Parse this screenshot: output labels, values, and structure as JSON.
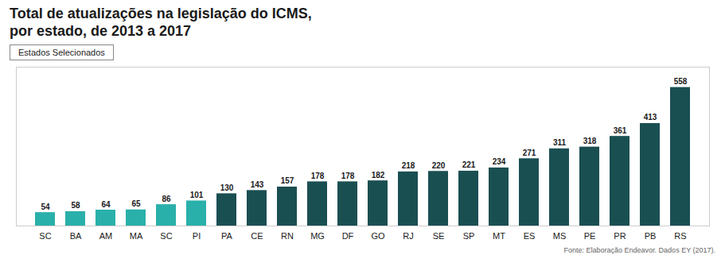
{
  "chart_data": {
    "type": "bar",
    "title": "Total de atualizações na legislação do ICMS,",
    "subtitle": "por estado, de 2013 a 2017",
    "categories": [
      "SC",
      "BA",
      "AM",
      "MA",
      "SC",
      "PI",
      "PA",
      "CE",
      "RN",
      "MG",
      "DF",
      "GO",
      "RJ",
      "SE",
      "SP",
      "MT",
      "ES",
      "MS",
      "PE",
      "PR",
      "PB",
      "RS"
    ],
    "values": [
      54,
      58,
      64,
      65,
      86,
      101,
      130,
      143,
      157,
      178,
      178,
      182,
      218,
      220,
      221,
      234,
      271,
      311,
      318,
      361,
      413,
      558
    ],
    "colors": [
      "#2ab0aa",
      "#2ab0aa",
      "#2ab0aa",
      "#2ab0aa",
      "#2ab0aa",
      "#2ab0aa",
      "#1a4f52",
      "#1a4f52",
      "#1a4f52",
      "#1a4f52",
      "#1a4f52",
      "#1a4f52",
      "#1a4f52",
      "#1a4f52",
      "#1a4f52",
      "#1a4f52",
      "#1a4f52",
      "#1a4f52",
      "#1a4f52",
      "#1a4f52",
      "#1a4f52",
      "#1a4f52"
    ],
    "ylim": [
      0,
      640
    ],
    "data_labels": true,
    "tick_labels": "x",
    "grid": false,
    "annotations": [
      "Estados Selecionados",
      "Fonte: Elaboração Endeavor. Dados EY (2017)."
    ]
  }
}
